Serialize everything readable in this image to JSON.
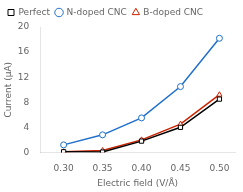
{
  "chart_data": {
    "type": "line",
    "xlabel": "Electric field (V/Å)",
    "ylabel": "Current (μA)",
    "x": [
      0.3,
      0.35,
      0.4,
      0.45,
      0.5
    ],
    "series": [
      {
        "name": "Perfect",
        "color": "#000000",
        "marker": "square",
        "values": [
          0.1,
          0.05,
          1.8,
          4.0,
          8.5
        ]
      },
      {
        "name": "N-doped CNC",
        "color": "#1f6fcc",
        "marker": "circle",
        "values": [
          1.2,
          2.8,
          5.5,
          10.5,
          18.2
        ]
      },
      {
        "name": "B-doped CNC",
        "color": "#cc2200",
        "marker": "triangle",
        "values": [
          0.1,
          0.3,
          2.0,
          4.5,
          9.2
        ]
      }
    ],
    "xlim": [
      0.27,
      0.52
    ],
    "xticks": [
      {
        "value": 0.3,
        "label": "0.30"
      },
      0.35,
      {
        "value": 0.4,
        "label": "0.40"
      },
      0.45,
      {
        "value": 0.5,
        "label": "0.50"
      }
    ],
    "ylim": [
      0,
      20
    ],
    "yticks": [
      0,
      4,
      8,
      12,
      16,
      20
    ],
    "grid": false,
    "legend": "upper left"
  }
}
